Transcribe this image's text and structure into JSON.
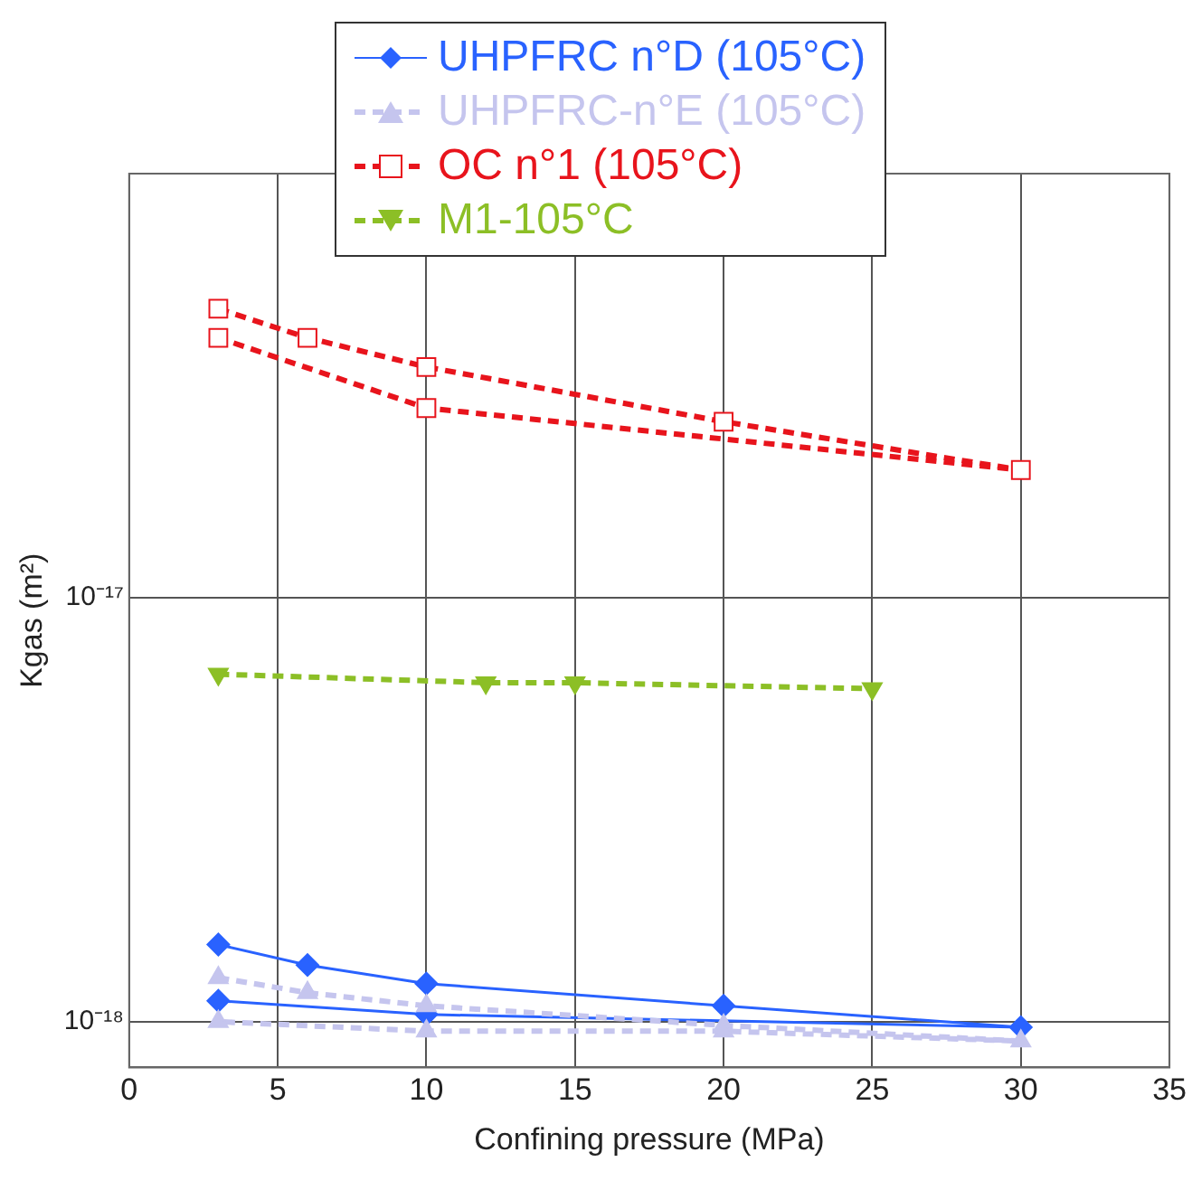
{
  "chart_data": {
    "type": "line",
    "xlabel": "Confining pressure (MPa)",
    "ylabel": "Kgas (m²)",
    "xlim": [
      0,
      35
    ],
    "xticks": [
      0,
      5,
      10,
      15,
      20,
      25,
      30,
      35
    ],
    "ylim": [
      7.8e-19,
      1e-16
    ],
    "yticks": [
      {
        "value": 1e-18,
        "label": "10⁻¹⁸"
      },
      {
        "value": 1e-17,
        "label": "10⁻¹⁷"
      }
    ],
    "log": "y",
    "grid": true,
    "legend": "top",
    "series": [
      {
        "name": "UHPFRC n°D (105°C)",
        "color": "#2962ff",
        "marker": "diamond",
        "line_style": "solid",
        "x": [
          3,
          6,
          10,
          20,
          30,
          10,
          3
        ],
        "values": [
          1.52e-18,
          1.36e-18,
          1.23e-18,
          1.09e-18,
          9.7e-19,
          1.04e-18,
          1.12e-18
        ]
      },
      {
        "name": "UHPFRC-n°E (105°C)",
        "color": "#c5c5ee",
        "marker": "triangle",
        "line_style": "dashed",
        "x": [
          3,
          6,
          10,
          20,
          30,
          20,
          10,
          3
        ],
        "values": [
          1.27e-18,
          1.17e-18,
          1.09e-18,
          9.8e-19,
          9e-19,
          9.5e-19,
          9.5e-19,
          1e-18
        ]
      },
      {
        "name": "OC n°1 (105°C)",
        "color": "#e8141c",
        "marker": "square",
        "line_style": "dashed",
        "x": [
          3,
          6,
          10,
          20,
          30,
          10,
          3
        ],
        "values": [
          4.8e-17,
          4.1e-17,
          3.5e-17,
          2.6e-17,
          2e-17,
          2.8e-17,
          4.1e-17
        ]
      },
      {
        "name": "M1-105°C",
        "color": "#8cbf26",
        "marker": "triangle-down",
        "line_style": "dashed",
        "x": [
          3,
          12,
          15,
          25
        ],
        "values": [
          6.6e-18,
          6.3e-18,
          6.3e-18,
          6.1e-18
        ]
      }
    ]
  }
}
